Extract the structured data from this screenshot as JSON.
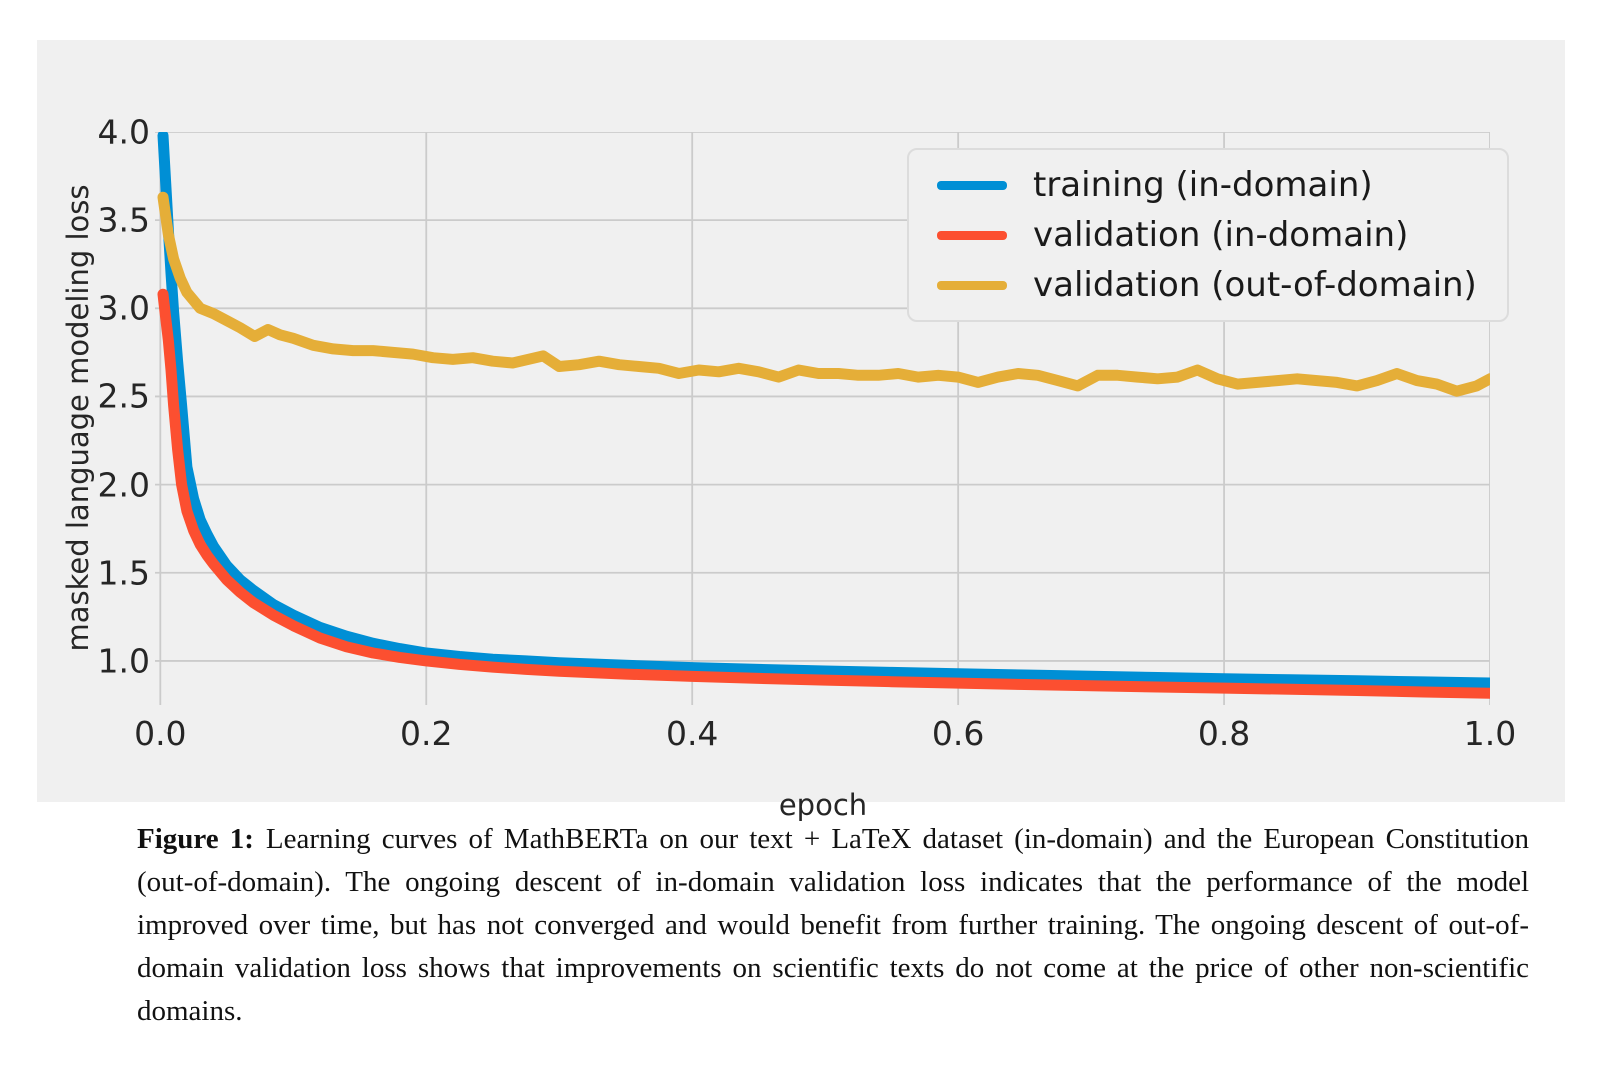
{
  "figure": {
    "caption_label": "Figure 1:",
    "caption_text": "Learning curves of MathBERTa on our text + LaTeX dataset (in-domain) and the European Constitution (out-of-domain). The ongoing descent of in-domain validation loss indicates that the performance of the model improved over time, but has not converged and would benefit from further training. The ongoing descent of out-of-domain validation loss shows that improvements on scientific texts do not come at the price of other non-scientific domains."
  },
  "chart_data": {
    "type": "line",
    "title": "",
    "xlabel": "epoch",
    "ylabel": "masked language modeling loss",
    "xlim": [
      -0.004,
      1.0
    ],
    "ylim": [
      0.75,
      4.0
    ],
    "xticks": [
      0.0,
      0.2,
      0.4,
      0.6,
      0.8,
      1.0
    ],
    "yticks": [
      1.0,
      1.5,
      2.0,
      2.5,
      3.0,
      3.5,
      4.0
    ],
    "grid": true,
    "legend_position": "upper right",
    "colors": {
      "background": "#f0f0f0",
      "grid": "#cbcbcb",
      "text": "#262626"
    },
    "series": [
      {
        "name": "training (in-domain)",
        "color": "#008fd5",
        "x": [
          0.002,
          0.004,
          0.006,
          0.008,
          0.01,
          0.013,
          0.016,
          0.02,
          0.025,
          0.03,
          0.035,
          0.04,
          0.05,
          0.06,
          0.07,
          0.085,
          0.1,
          0.12,
          0.14,
          0.16,
          0.18,
          0.2,
          0.225,
          0.25,
          0.275,
          0.3,
          0.35,
          0.4,
          0.45,
          0.5,
          0.55,
          0.6,
          0.65,
          0.7,
          0.75,
          0.8,
          0.85,
          0.9,
          0.95,
          1.0
        ],
        "y": [
          3.98,
          3.72,
          3.45,
          3.2,
          2.98,
          2.7,
          2.45,
          2.1,
          1.92,
          1.8,
          1.72,
          1.65,
          1.54,
          1.46,
          1.4,
          1.32,
          1.26,
          1.19,
          1.14,
          1.1,
          1.07,
          1.045,
          1.025,
          1.01,
          1.0,
          0.99,
          0.975,
          0.962,
          0.952,
          0.943,
          0.935,
          0.927,
          0.92,
          0.913,
          0.906,
          0.899,
          0.893,
          0.887,
          0.881,
          0.875
        ]
      },
      {
        "name": "validation (in-domain)",
        "color": "#fc4f30",
        "x": [
          0.002,
          0.004,
          0.006,
          0.008,
          0.01,
          0.013,
          0.016,
          0.02,
          0.025,
          0.03,
          0.035,
          0.04,
          0.05,
          0.06,
          0.07,
          0.085,
          0.1,
          0.12,
          0.14,
          0.16,
          0.18,
          0.2,
          0.225,
          0.25,
          0.275,
          0.3,
          0.35,
          0.4,
          0.45,
          0.5,
          0.55,
          0.6,
          0.65,
          0.7,
          0.75,
          0.8,
          0.85,
          0.9,
          0.95,
          1.0
        ],
        "y": [
          3.08,
          2.95,
          2.82,
          2.65,
          2.45,
          2.2,
          2.0,
          1.85,
          1.74,
          1.66,
          1.6,
          1.55,
          1.46,
          1.39,
          1.33,
          1.26,
          1.2,
          1.13,
          1.08,
          1.045,
          1.02,
          1.0,
          0.98,
          0.965,
          0.952,
          0.941,
          0.925,
          0.912,
          0.901,
          0.891,
          0.882,
          0.874,
          0.866,
          0.859,
          0.852,
          0.846,
          0.839,
          0.832,
          0.824,
          0.817
        ]
      },
      {
        "name": "validation (out-of-domain)",
        "color": "#e5ae38",
        "x": [
          0.002,
          0.006,
          0.01,
          0.015,
          0.02,
          0.03,
          0.04,
          0.05,
          0.06,
          0.071,
          0.081,
          0.09,
          0.1,
          0.115,
          0.13,
          0.145,
          0.16,
          0.175,
          0.19,
          0.205,
          0.22,
          0.235,
          0.25,
          0.265,
          0.288,
          0.3,
          0.315,
          0.33,
          0.345,
          0.36,
          0.375,
          0.39,
          0.405,
          0.42,
          0.435,
          0.45,
          0.465,
          0.48,
          0.495,
          0.51,
          0.525,
          0.54,
          0.555,
          0.57,
          0.585,
          0.6,
          0.615,
          0.63,
          0.645,
          0.66,
          0.675,
          0.69,
          0.705,
          0.72,
          0.735,
          0.75,
          0.765,
          0.78,
          0.795,
          0.81,
          0.825,
          0.84,
          0.855,
          0.87,
          0.885,
          0.9,
          0.915,
          0.93,
          0.945,
          0.96,
          0.975,
          0.99,
          1.0
        ],
        "y": [
          3.63,
          3.42,
          3.28,
          3.17,
          3.09,
          3.0,
          2.97,
          2.93,
          2.89,
          2.84,
          2.88,
          2.85,
          2.83,
          2.79,
          2.77,
          2.76,
          2.76,
          2.75,
          2.74,
          2.72,
          2.71,
          2.72,
          2.7,
          2.69,
          2.73,
          2.67,
          2.68,
          2.7,
          2.68,
          2.67,
          2.66,
          2.63,
          2.65,
          2.64,
          2.66,
          2.64,
          2.61,
          2.65,
          2.63,
          2.63,
          2.62,
          2.62,
          2.63,
          2.61,
          2.62,
          2.61,
          2.58,
          2.61,
          2.63,
          2.62,
          2.59,
          2.56,
          2.62,
          2.62,
          2.61,
          2.6,
          2.61,
          2.65,
          2.6,
          2.57,
          2.58,
          2.59,
          2.6,
          2.59,
          2.58,
          2.56,
          2.59,
          2.63,
          2.59,
          2.57,
          2.53,
          2.56,
          2.6
        ]
      }
    ]
  }
}
